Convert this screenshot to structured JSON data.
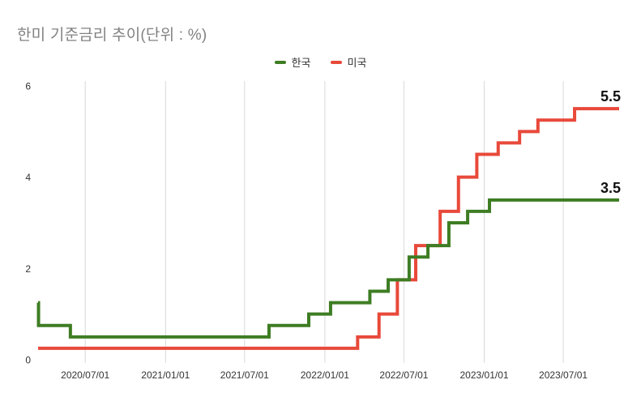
{
  "title": "한미 기준금리 추이(단위 : %)",
  "legend": {
    "items": [
      {
        "label": "한국",
        "color": "#3e7d23"
      },
      {
        "label": "미국",
        "color": "#e8493a"
      }
    ]
  },
  "colors": {
    "background": "#ffffff",
    "title_text": "#828282",
    "grid_line": "#d9d9d9",
    "axis_text": "#333333",
    "end_label_text": "#111111",
    "korea_line": "#3e7d23",
    "us_line": "#e8493a"
  },
  "chart_data": {
    "type": "line",
    "step": true,
    "title": "한미 기준금리 추이(단위 : %)",
    "unit": "%",
    "legend_position": "top-center",
    "grid": "vertical-only",
    "x_ticks": [
      "2020/07/01",
      "2021/01/01",
      "2021/07/01",
      "2022/01/01",
      "2022/07/01",
      "2023/01/01",
      "2023/07/01"
    ],
    "x_domain": [
      "2020-03-15",
      "2023-11-06"
    ],
    "y_ticks": [
      0,
      2,
      4,
      6
    ],
    "ylim": [
      0,
      6
    ],
    "series": [
      {
        "name": "한국",
        "color": "#3e7d23",
        "end_label": "3.5",
        "points": [
          {
            "date": "2020-03-15",
            "value": 1.25
          },
          {
            "date": "2020-03-16",
            "value": 0.75
          },
          {
            "date": "2020-05-28",
            "value": 0.5
          },
          {
            "date": "2021-08-26",
            "value": 0.75
          },
          {
            "date": "2021-11-25",
            "value": 1.0
          },
          {
            "date": "2022-01-14",
            "value": 1.25
          },
          {
            "date": "2022-04-14",
            "value": 1.5
          },
          {
            "date": "2022-05-26",
            "value": 1.75
          },
          {
            "date": "2022-07-13",
            "value": 2.25
          },
          {
            "date": "2022-08-25",
            "value": 2.5
          },
          {
            "date": "2022-10-12",
            "value": 3.0
          },
          {
            "date": "2022-11-24",
            "value": 3.25
          },
          {
            "date": "2023-01-13",
            "value": 3.5
          }
        ]
      },
      {
        "name": "미국",
        "color": "#e8493a",
        "end_label": "5.5",
        "points": [
          {
            "date": "2020-03-15",
            "value": 0.25
          },
          {
            "date": "2022-03-17",
            "value": 0.5
          },
          {
            "date": "2022-05-05",
            "value": 1.0
          },
          {
            "date": "2022-06-16",
            "value": 1.75
          },
          {
            "date": "2022-07-28",
            "value": 2.5
          },
          {
            "date": "2022-09-22",
            "value": 3.25
          },
          {
            "date": "2022-11-03",
            "value": 4.0
          },
          {
            "date": "2022-12-15",
            "value": 4.5
          },
          {
            "date": "2023-02-02",
            "value": 4.75
          },
          {
            "date": "2023-03-23",
            "value": 5.0
          },
          {
            "date": "2023-05-04",
            "value": 5.25
          },
          {
            "date": "2023-07-27",
            "value": 5.5
          }
        ]
      }
    ]
  }
}
